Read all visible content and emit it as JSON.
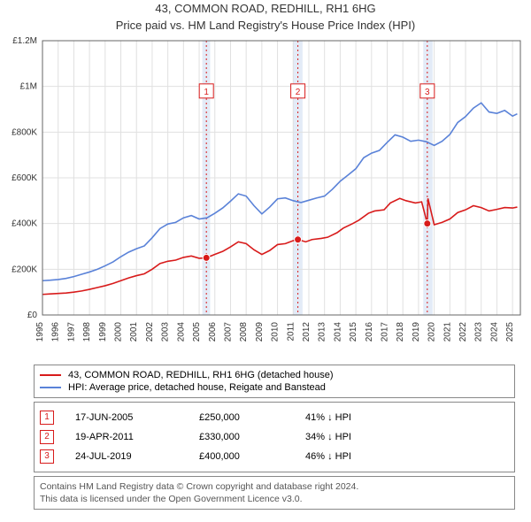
{
  "title_line1": "43, COMMON ROAD, REDHILL, RH1 6HG",
  "title_line2": "Price paid vs. HM Land Registry's House Price Index (HPI)",
  "chart": {
    "type": "line",
    "background_color": "#ffffff",
    "grid_color": "#e0e0e0",
    "axis_color": "#666666",
    "text_color": "#333333",
    "series_red_color": "#d81b1b",
    "series_blue_color": "#5a82d8",
    "event_line_color": "#d81b1b",
    "event_band_color": "#e3ebf7",
    "ylim": [
      0,
      1200000
    ],
    "ytick_step": 200000,
    "ytick_labels": [
      "£0",
      "£200K",
      "£400K",
      "£600K",
      "£800K",
      "£1M",
      "£1.2M"
    ],
    "xlim": [
      1995,
      2025.5
    ],
    "xtick_step": 1,
    "xtick_labels": [
      "1995",
      "1996",
      "1997",
      "1998",
      "1999",
      "2000",
      "2001",
      "2002",
      "2003",
      "2004",
      "2005",
      "2006",
      "2007",
      "2008",
      "2009",
      "2010",
      "2011",
      "2012",
      "2013",
      "2014",
      "2015",
      "2016",
      "2017",
      "2018",
      "2019",
      "2020",
      "2021",
      "2022",
      "2023",
      "2024",
      "2025"
    ],
    "title_fontsize": 13,
    "label_fontsize": 10,
    "tick_fontsize": 10,
    "event_bands": [
      {
        "from": 2005.2,
        "to": 2005.7
      },
      {
        "from": 2011.0,
        "to": 2011.6
      },
      {
        "from": 2019.3,
        "to": 2019.9
      }
    ],
    "event_lines": [
      {
        "x": 2005.46,
        "label": "1",
        "label_y": 980000
      },
      {
        "x": 2011.3,
        "label": "2",
        "label_y": 980000
      },
      {
        "x": 2019.56,
        "label": "3",
        "label_y": 980000
      }
    ],
    "event_points_red": [
      {
        "x": 2005.46,
        "y": 250000
      },
      {
        "x": 2011.3,
        "y": 330000
      },
      {
        "x": 2019.56,
        "y": 400000
      }
    ],
    "series_red": {
      "name": "43, COMMON ROAD, REDHILL, RH1 6HG (detached house)",
      "points": [
        [
          1995.0,
          90000
        ],
        [
          1995.5,
          92000
        ],
        [
          1996.0,
          94000
        ],
        [
          1996.5,
          96000
        ],
        [
          1997.0,
          100000
        ],
        [
          1997.5,
          105000
        ],
        [
          1998.0,
          112000
        ],
        [
          1998.5,
          120000
        ],
        [
          1999.0,
          128000
        ],
        [
          1999.5,
          138000
        ],
        [
          2000.0,
          150000
        ],
        [
          2000.5,
          162000
        ],
        [
          2001.0,
          172000
        ],
        [
          2001.5,
          180000
        ],
        [
          2002.0,
          200000
        ],
        [
          2002.5,
          225000
        ],
        [
          2003.0,
          235000
        ],
        [
          2003.5,
          240000
        ],
        [
          2004.0,
          252000
        ],
        [
          2004.5,
          258000
        ],
        [
          2005.0,
          248000
        ],
        [
          2005.46,
          250000
        ],
        [
          2006.0,
          265000
        ],
        [
          2006.5,
          278000
        ],
        [
          2007.0,
          298000
        ],
        [
          2007.5,
          320000
        ],
        [
          2008.0,
          312000
        ],
        [
          2008.5,
          285000
        ],
        [
          2009.0,
          265000
        ],
        [
          2009.5,
          282000
        ],
        [
          2010.0,
          308000
        ],
        [
          2010.5,
          312000
        ],
        [
          2011.0,
          325000
        ],
        [
          2011.3,
          330000
        ],
        [
          2011.8,
          320000
        ],
        [
          2012.2,
          330000
        ],
        [
          2012.8,
          335000
        ],
        [
          2013.2,
          340000
        ],
        [
          2013.8,
          360000
        ],
        [
          2014.2,
          380000
        ],
        [
          2014.8,
          400000
        ],
        [
          2015.2,
          415000
        ],
        [
          2015.8,
          445000
        ],
        [
          2016.2,
          455000
        ],
        [
          2016.8,
          460000
        ],
        [
          2017.2,
          490000
        ],
        [
          2017.8,
          510000
        ],
        [
          2018.2,
          500000
        ],
        [
          2018.8,
          490000
        ],
        [
          2019.2,
          495000
        ],
        [
          2019.56,
          400000
        ],
        [
          2019.6,
          510000
        ],
        [
          2020.0,
          395000
        ],
        [
          2020.5,
          405000
        ],
        [
          2021.0,
          420000
        ],
        [
          2021.5,
          448000
        ],
        [
          2022.0,
          460000
        ],
        [
          2022.5,
          478000
        ],
        [
          2023.0,
          470000
        ],
        [
          2023.5,
          455000
        ],
        [
          2024.0,
          462000
        ],
        [
          2024.5,
          470000
        ],
        [
          2025.0,
          468000
        ],
        [
          2025.3,
          472000
        ]
      ]
    },
    "series_blue": {
      "name": "HPI: Average price, detached house, Reigate and Banstead",
      "points": [
        [
          1995.0,
          150000
        ],
        [
          1995.5,
          152000
        ],
        [
          1996.0,
          155000
        ],
        [
          1996.5,
          160000
        ],
        [
          1997.0,
          168000
        ],
        [
          1997.5,
          178000
        ],
        [
          1998.0,
          188000
        ],
        [
          1998.5,
          200000
        ],
        [
          1999.0,
          215000
        ],
        [
          1999.5,
          232000
        ],
        [
          2000.0,
          255000
        ],
        [
          2000.5,
          275000
        ],
        [
          2001.0,
          290000
        ],
        [
          2001.5,
          302000
        ],
        [
          2002.0,
          338000
        ],
        [
          2002.5,
          378000
        ],
        [
          2003.0,
          398000
        ],
        [
          2003.5,
          405000
        ],
        [
          2004.0,
          425000
        ],
        [
          2004.5,
          435000
        ],
        [
          2005.0,
          420000
        ],
        [
          2005.5,
          425000
        ],
        [
          2006.0,
          445000
        ],
        [
          2006.5,
          468000
        ],
        [
          2007.0,
          498000
        ],
        [
          2007.5,
          530000
        ],
        [
          2008.0,
          520000
        ],
        [
          2008.5,
          478000
        ],
        [
          2009.0,
          442000
        ],
        [
          2009.5,
          472000
        ],
        [
          2010.0,
          508000
        ],
        [
          2010.5,
          512000
        ],
        [
          2011.0,
          500000
        ],
        [
          2011.5,
          492000
        ],
        [
          2012.0,
          502000
        ],
        [
          2012.5,
          512000
        ],
        [
          2013.0,
          520000
        ],
        [
          2013.5,
          550000
        ],
        [
          2014.0,
          585000
        ],
        [
          2014.5,
          612000
        ],
        [
          2015.0,
          640000
        ],
        [
          2015.5,
          688000
        ],
        [
          2016.0,
          708000
        ],
        [
          2016.5,
          720000
        ],
        [
          2017.0,
          755000
        ],
        [
          2017.5,
          788000
        ],
        [
          2018.0,
          778000
        ],
        [
          2018.5,
          760000
        ],
        [
          2019.0,
          765000
        ],
        [
          2019.5,
          758000
        ],
        [
          2020.0,
          742000
        ],
        [
          2020.5,
          760000
        ],
        [
          2021.0,
          790000
        ],
        [
          2021.5,
          842000
        ],
        [
          2022.0,
          868000
        ],
        [
          2022.5,
          905000
        ],
        [
          2023.0,
          928000
        ],
        [
          2023.5,
          888000
        ],
        [
          2024.0,
          882000
        ],
        [
          2024.5,
          895000
        ],
        [
          2025.0,
          870000
        ],
        [
          2025.3,
          880000
        ]
      ]
    }
  },
  "legend": {
    "red_label": "43, COMMON ROAD, REDHILL, RH1 6HG (detached house)",
    "blue_label": "HPI: Average price, detached house, Reigate and Banstead"
  },
  "events_table": [
    {
      "badge": "1",
      "date": "17-JUN-2005",
      "price": "£250,000",
      "note": "41% ↓ HPI"
    },
    {
      "badge": "2",
      "date": "19-APR-2011",
      "price": "£330,000",
      "note": "34% ↓ HPI"
    },
    {
      "badge": "3",
      "date": "24-JUL-2019",
      "price": "£400,000",
      "note": "46% ↓ HPI"
    }
  ],
  "footer_line1": "Contains HM Land Registry data © Crown copyright and database right 2024.",
  "footer_line2": "This data is licensed under the Open Government Licence v3.0."
}
